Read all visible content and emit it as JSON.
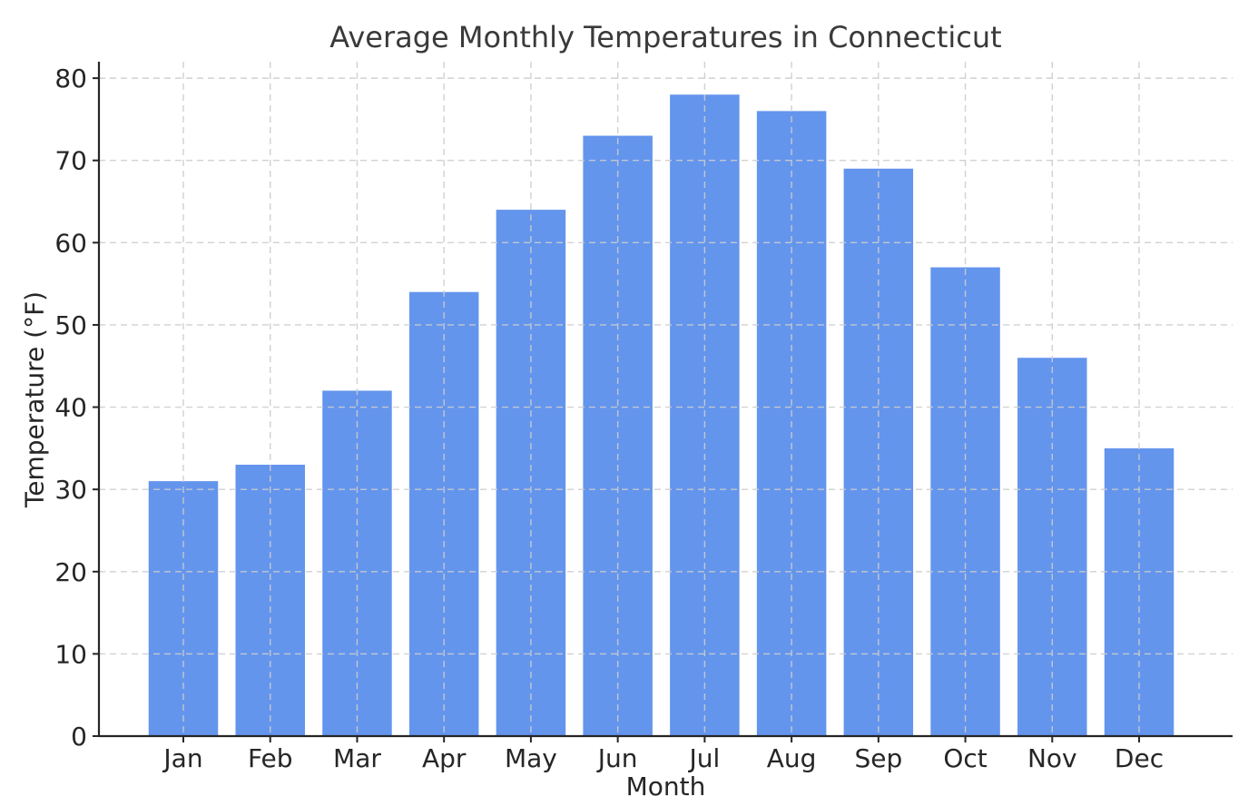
{
  "chart_data": {
    "type": "bar",
    "title": "Average Monthly Temperatures in Connecticut",
    "xlabel": "Month",
    "ylabel": "Temperature (°F)",
    "categories": [
      "Jan",
      "Feb",
      "Mar",
      "Apr",
      "May",
      "Jun",
      "Jul",
      "Aug",
      "Sep",
      "Oct",
      "Nov",
      "Dec"
    ],
    "values": [
      31,
      33,
      42,
      54,
      64,
      73,
      78,
      76,
      69,
      57,
      46,
      35
    ],
    "ylim": [
      0,
      82
    ],
    "yticks": [
      0,
      10,
      20,
      30,
      40,
      50,
      60,
      70,
      80
    ],
    "grid": "dashed, horizontal and vertical, drawn over bars",
    "legend": "none",
    "colors": {
      "bar": "#6495ED",
      "grid": "#cccccc",
      "axis": "#262626",
      "tick_label": "#262626",
      "title": "#3a3a3a",
      "background": "#ffffff"
    }
  }
}
